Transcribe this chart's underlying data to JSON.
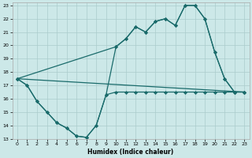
{
  "xlabel": "Humidex (Indice chaleur)",
  "bg_color": "#cce8e8",
  "grid_color": "#aacccc",
  "line_color": "#1a6b6b",
  "xlim": [
    -0.5,
    23.5
  ],
  "ylim": [
    13,
    23.2
  ],
  "xticks": [
    0,
    1,
    2,
    3,
    4,
    5,
    6,
    7,
    8,
    9,
    10,
    11,
    12,
    13,
    14,
    15,
    16,
    17,
    18,
    19,
    20,
    21,
    22,
    23
  ],
  "yticks": [
    13,
    14,
    15,
    16,
    17,
    18,
    19,
    20,
    21,
    22,
    23
  ],
  "line1_x": [
    0,
    1,
    2,
    3,
    4,
    5,
    6,
    7,
    8,
    9,
    10,
    11,
    12,
    13,
    14,
    15,
    16,
    17,
    18,
    19,
    20,
    21,
    22,
    23
  ],
  "line1_y": [
    17.5,
    17.0,
    15.8,
    15.0,
    14.2,
    13.8,
    13.2,
    13.1,
    14.0,
    16.3,
    16.5,
    16.5,
    16.5,
    16.5,
    16.5,
    16.5,
    16.5,
    16.5,
    16.5,
    16.5,
    16.5,
    16.5,
    16.5,
    16.5
  ],
  "line2_x": [
    0,
    1,
    2,
    3,
    4,
    5,
    6,
    7,
    8,
    9,
    10,
    11,
    12,
    13,
    14,
    15,
    16,
    17,
    18,
    19,
    20,
    21,
    22
  ],
  "line2_y": [
    17.5,
    17.0,
    15.8,
    15.0,
    14.2,
    13.8,
    13.2,
    13.1,
    14.0,
    16.3,
    19.9,
    20.5,
    21.4,
    21.0,
    21.8,
    22.0,
    21.5,
    23.0,
    23.0,
    22.0,
    19.5,
    17.5,
    16.5
  ],
  "line3_x": [
    0,
    10,
    11,
    12,
    13,
    14,
    15,
    16,
    17,
    18,
    19,
    20,
    21,
    22,
    23
  ],
  "line3_y": [
    17.5,
    19.9,
    20.5,
    21.4,
    21.0,
    21.8,
    22.0,
    21.5,
    23.0,
    23.0,
    22.0,
    19.5,
    17.5,
    16.5,
    16.5
  ],
  "line4_x": [
    0,
    23
  ],
  "line4_y": [
    17.5,
    16.5
  ]
}
